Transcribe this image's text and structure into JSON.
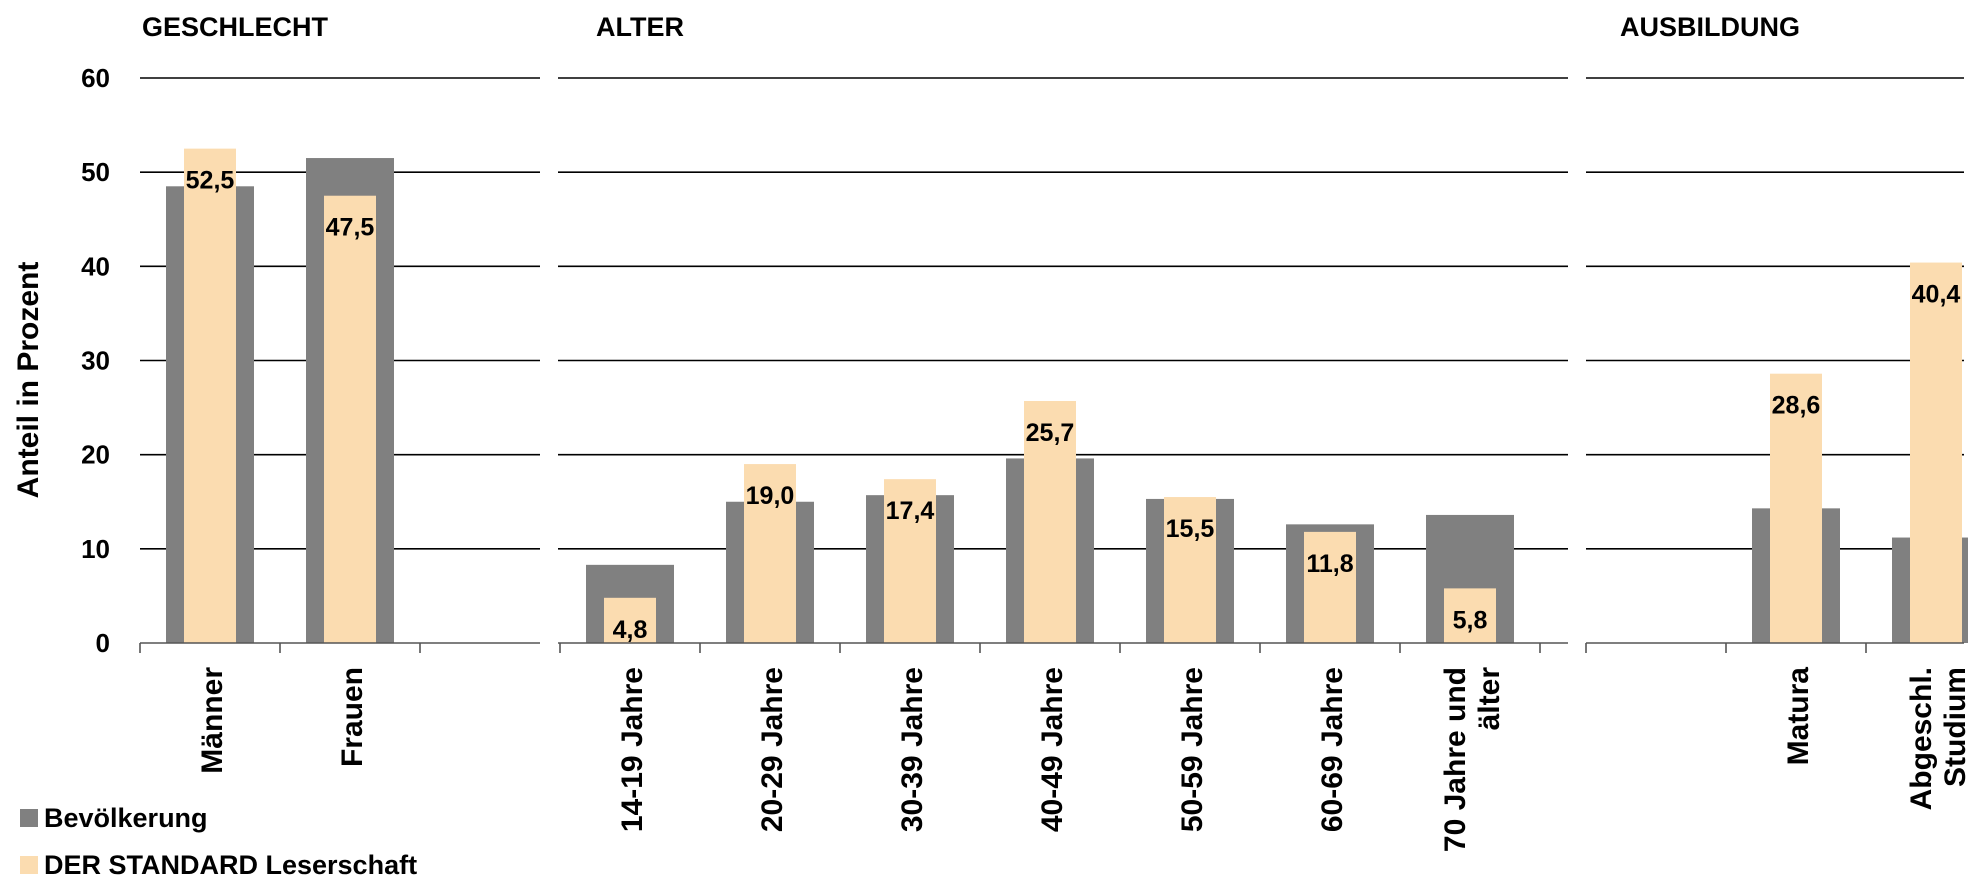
{
  "chart_data": {
    "type": "bar",
    "ylabel": "Anteil in Prozent",
    "ylim": [
      0,
      60
    ],
    "yticks": [
      0,
      10,
      20,
      30,
      40,
      50,
      60
    ],
    "grid": true,
    "legend_position": "bottom-left",
    "colors": {
      "Bevölkerung": "#808080",
      "DER STANDARD Leserschaft": "#fbdcb0"
    },
    "legend": [
      "Bevölkerung",
      "DER STANDARD Leserschaft"
    ],
    "panels": [
      {
        "title": "GESCHLECHT",
        "categories": [
          "Männer",
          "Frauen",
          ""
        ],
        "series": [
          {
            "name": "Bevölkerung",
            "values": [
              48.5,
              51.5,
              null
            ]
          },
          {
            "name": "DER STANDARD Leserschaft",
            "values": [
              52.5,
              47.5,
              null
            ]
          }
        ],
        "data_labels": [
          "52,5",
          "47,5",
          ""
        ]
      },
      {
        "title": "ALTER",
        "categories": [
          "14-19 Jahre",
          "20-29 Jahre",
          "30-39 Jahre",
          "40-49 Jahre",
          "50-59 Jahre",
          "60-69 Jahre",
          "70 Jahre und älter"
        ],
        "series": [
          {
            "name": "Bevölkerung",
            "values": [
              8.3,
              15.0,
              15.7,
              19.6,
              15.3,
              12.6,
              13.6
            ]
          },
          {
            "name": "DER STANDARD Leserschaft",
            "values": [
              4.8,
              19.0,
              17.4,
              25.7,
              15.5,
              11.8,
              5.8
            ]
          }
        ],
        "data_labels": [
          "4,8",
          "19,0",
          "17,4",
          "25,7",
          "15,5",
          "11,8",
          "5,8"
        ]
      },
      {
        "title": "AUSBILDUNG",
        "categories": [
          "",
          "Matura",
          "Abgeschl. Studium"
        ],
        "series": [
          {
            "name": "Bevölkerung",
            "values": [
              null,
              14.3,
              11.2
            ]
          },
          {
            "name": "DER STANDARD Leserschaft",
            "values": [
              null,
              28.6,
              40.4
            ]
          }
        ],
        "data_labels": [
          "",
          "28,6",
          "40,4"
        ]
      }
    ]
  }
}
